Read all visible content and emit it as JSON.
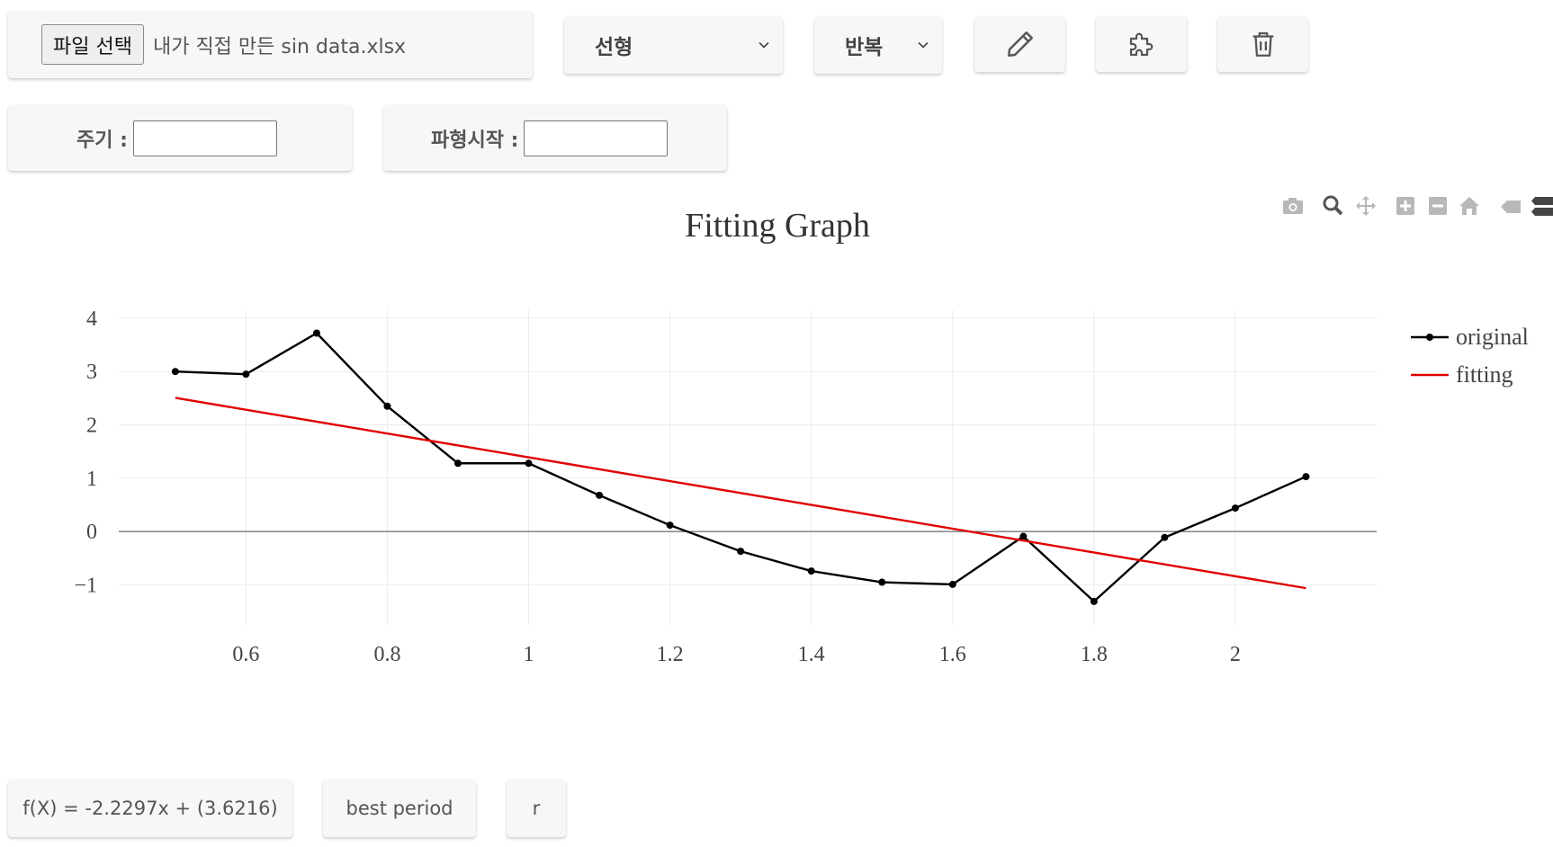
{
  "file": {
    "button_label": "파일 선택",
    "file_name": "내가 직접 만든 sin data.xlsx"
  },
  "fit_type": {
    "selected": "선형"
  },
  "fit_mode": {
    "selected": "반복"
  },
  "toolbar": {
    "edit_icon": "pencil-icon",
    "plugin_icon": "puzzle-icon",
    "delete_icon": "trash-icon"
  },
  "inputs": {
    "period_label": "주기 :",
    "period_value": "",
    "start_label": "파형시작 :",
    "start_value": ""
  },
  "modebar": [
    "camera-icon",
    "zoom-icon",
    "pan-icon",
    "zoom-in-icon",
    "zoom-out-icon",
    "home-icon",
    "spike-icon",
    "compare-icon"
  ],
  "chart_data": {
    "type": "line",
    "title": "Fitting Graph",
    "xlim": [
      0.42,
      2.2
    ],
    "ylim": [
      -1.75,
      4.15
    ],
    "xticks": [
      0.6,
      0.8,
      1,
      1.2,
      1.4,
      1.6,
      1.8,
      2
    ],
    "xtick_labels": [
      "0.6",
      "0.8",
      "1",
      "1.2",
      "1.4",
      "1.6",
      "1.8",
      "2"
    ],
    "yticks": [
      -1,
      0,
      1,
      2,
      3,
      4
    ],
    "ytick_labels": [
      "−1",
      "0",
      "1",
      "2",
      "3",
      "4"
    ],
    "grid": true,
    "legend_position": "top-right",
    "series": [
      {
        "name": "original",
        "color": "#000000",
        "mode": "lines+markers",
        "x": [
          0.5,
          0.6,
          0.7,
          0.8,
          0.9,
          1.0,
          1.1,
          1.2,
          1.3,
          1.4,
          1.5,
          1.6,
          1.7,
          1.8,
          1.9,
          2.0,
          2.1
        ],
        "y": [
          3.0,
          2.95,
          3.72,
          2.35,
          1.28,
          1.28,
          0.68,
          0.12,
          -0.37,
          -0.74,
          -0.95,
          -0.99,
          -0.09,
          -1.31,
          -0.11,
          0.44,
          1.03
        ]
      },
      {
        "name": "fitting",
        "color": "#e00000",
        "mode": "lines",
        "x": [
          0.5,
          2.1
        ],
        "y": [
          2.507,
          -1.061
        ]
      }
    ]
  },
  "results": {
    "formula": "f(X) = -2.2297x + (3.6216)",
    "best_period": "best period",
    "r": "r"
  }
}
